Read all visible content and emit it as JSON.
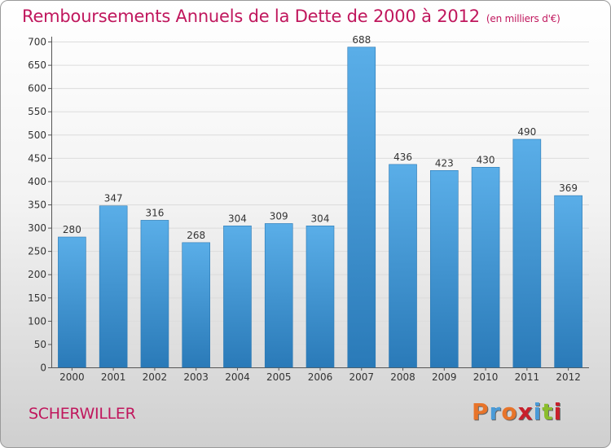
{
  "title": "Remboursements Annuels de la Dette de 2000 à 2012",
  "subtitle": "(en milliers d'€)",
  "footer_label": "SCHERWILLER",
  "logo_text": "Proxiti",
  "colors": {
    "title": "#c0175d",
    "bar_top": "#5aaee8",
    "bar_bottom": "#2a7ab8",
    "logo": [
      "#e8742a",
      "#4a9bd8",
      "#e8742a",
      "#c8202c",
      "#4a9bd8",
      "#8bbd2c",
      "#c8202c"
    ]
  },
  "chart_data": {
    "type": "bar",
    "title": "Remboursements Annuels de la Dette de 2000 à 2012",
    "subtitle": "(en milliers d'€)",
    "categories": [
      "2000",
      "2001",
      "2002",
      "2003",
      "2004",
      "2005",
      "2006",
      "2007",
      "2008",
      "2009",
      "2010",
      "2011",
      "2012"
    ],
    "values": [
      280,
      347,
      316,
      268,
      304,
      309,
      304,
      688,
      436,
      423,
      430,
      490,
      369
    ],
    "ylim": [
      0,
      700
    ],
    "yticks": [
      0,
      50,
      100,
      150,
      200,
      250,
      300,
      350,
      400,
      450,
      500,
      550,
      600,
      650,
      700
    ],
    "grid": true,
    "legend": "none"
  }
}
